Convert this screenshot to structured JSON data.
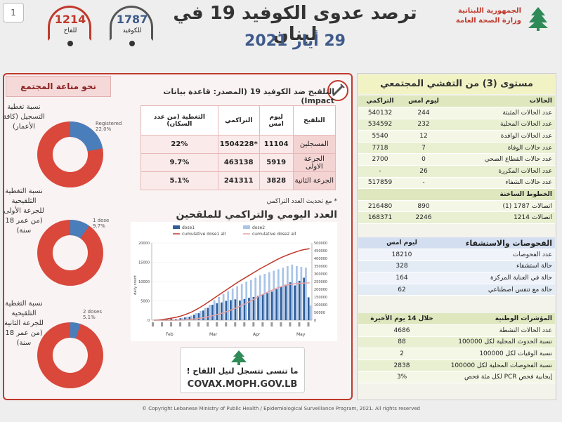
{
  "page_number": "1",
  "header": {
    "title": "ترصد عدوى الكوفيد 19 في لبنان",
    "date": "29 أيار 2021",
    "logo_line1": "الجمهورية اللبنانية",
    "logo_line2": "وزارة الصحة العامة",
    "hotlines": [
      {
        "number": "1214",
        "label": "للقاح"
      },
      {
        "number": "1787",
        "label": "للكوفيد"
      }
    ]
  },
  "left": {
    "immunity_title": "نحو مناعة المجتمع",
    "donuts": [
      {
        "label": "نسبة تغطية التسجيل (كافة الأعمار)",
        "legend": "Registered",
        "legend_pct": "22.0%",
        "fraction": 0.22
      },
      {
        "label": "نسبة التغطية التلقيحية للجرعة الأولى (من عمر 18 سنة)",
        "legend": "1 dose",
        "legend_pct": "9.7%",
        "fraction": 0.097
      },
      {
        "label": "نسبة التغطية التلقيحية للجرعة الثانية (من عمر 18 سنة)",
        "legend": "2 doses",
        "legend_pct": "5.1%",
        "fraction": 0.051
      }
    ],
    "vacc_title": "التلقيح ضد الكوفيد 19 (المصدر: قاعدة بيانات Impact)",
    "vacc_table": {
      "headers": [
        "التلقيح",
        "ليوم امس",
        "التراكمي",
        "التغطية (من عدد السكان)"
      ],
      "rows": [
        {
          "label": "المسجلين",
          "yesterday": "11104",
          "cumulative": "*1504228",
          "coverage": "22%"
        },
        {
          "label": "الجرعة الاولى",
          "yesterday": "5919",
          "cumulative": "463138",
          "coverage": "9.7%"
        },
        {
          "label": "الجرعة الثانية",
          "yesterday": "3828",
          "cumulative": "241311",
          "coverage": "5.1%"
        }
      ]
    },
    "vacc_note": "* مع تحديث العدد التراكمي",
    "chart_title": "العدد اليومي والتراكمي للملقحين",
    "covax_slogan": "ما تنسى تتسجل لنيل اللقاح !",
    "covax_url": "COVAX.MOPH.GOV.LB"
  },
  "chart_data": {
    "type": "bar",
    "legend": [
      "dose1",
      "dose2",
      "cumulative dose1 all",
      "cumulative dose2 all"
    ],
    "ylabel": "daily count",
    "y_ticks_left": [
      "0",
      "5000",
      "10000",
      "15000",
      "20000"
    ],
    "y_ticks_right": [
      "0",
      "50000",
      "100000",
      "150000",
      "200000",
      "250000",
      "300000",
      "350000",
      "400000",
      "450000",
      "500000"
    ],
    "months": [
      "Feb",
      "Mar",
      "Apr",
      "May"
    ],
    "ylim": [
      0,
      20000
    ],
    "y2lim": [
      0,
      500000
    ],
    "dose1": [
      50,
      120,
      200,
      300,
      400,
      300,
      500,
      700,
      900,
      1400,
      1800,
      2500,
      3200,
      4000,
      4400,
      4600,
      5000,
      5200,
      5400,
      5100,
      5500,
      5800,
      6000,
      6300,
      6700,
      7000,
      7400,
      8000,
      8600,
      9200,
      9800,
      9000,
      10200,
      11000,
      5919
    ],
    "dose2": [
      0,
      0,
      0,
      50,
      100,
      200,
      600,
      900,
      1200,
      1800,
      2400,
      3200,
      4000,
      5200,
      6000,
      6800,
      7500,
      8200,
      8800,
      9400,
      10000,
      10400,
      11000,
      11600,
      12000,
      12400,
      12800,
      13200,
      13600,
      14000,
      14400,
      14000,
      13800,
      13600,
      3828
    ],
    "cumulative_dose1": [
      0,
      2000,
      5000,
      9000,
      14000,
      20000,
      28000,
      38000,
      50000,
      65000,
      82000,
      100000,
      120000,
      140000,
      160000,
      180000,
      200000,
      220000,
      240000,
      258000,
      276000,
      294000,
      312000,
      330000,
      346000,
      362000,
      378000,
      394000,
      408000,
      420000,
      432000,
      442000,
      452000,
      458000,
      463138
    ],
    "cumulative_dose2": [
      0,
      0,
      0,
      0,
      0,
      500,
      1500,
      3000,
      5000,
      8000,
      12000,
      17000,
      23000,
      30000,
      38000,
      47000,
      57000,
      68000,
      80000,
      93000,
      107000,
      122000,
      138000,
      155000,
      170000,
      184000,
      197000,
      209000,
      219000,
      227000,
      233000,
      237000,
      239000,
      240500,
      241311
    ]
  },
  "right": {
    "title": "مستوى (3) من التفشي المجتمعي",
    "cases_table": {
      "header": {
        "label": "الحالات",
        "yesterday": "ليوم امس",
        "cumulative": "التراكمي"
      },
      "rows": [
        {
          "label": "عدد الحالات المثبتة",
          "yesterday": "244",
          "cumulative": "540132"
        },
        {
          "label": "عدد الحالات المحلية",
          "yesterday": "232",
          "cumulative": "534592"
        },
        {
          "label": "عدد الحالات الوافدة",
          "yesterday": "12",
          "cumulative": "5540"
        },
        {
          "label": "عدد حالات الوفاة",
          "yesterday": "7",
          "cumulative": "7718"
        },
        {
          "label": "عدد حالات القطاع الصحي",
          "yesterday": "0",
          "cumulative": "2700"
        },
        {
          "label": "عدد الحالات المكررة",
          "yesterday": "26",
          "cumulative": "-"
        },
        {
          "label": "عدد حالات الشفاء",
          "yesterday": "-",
          "cumulative": "517859"
        }
      ]
    },
    "hotline_table": {
      "header": "الخطوط الساخنة",
      "rows": [
        {
          "label": "اتصالات 1787 (1)",
          "yesterday": "890",
          "cumulative": "216480"
        },
        {
          "label": "اتصالات 1214",
          "yesterday": "2246",
          "cumulative": "168371"
        }
      ]
    },
    "tests_table": {
      "header": {
        "label": "الفحوصات والاستشفاء",
        "value": "ليوم امس"
      },
      "rows": [
        {
          "label": "عدد الفحوصات",
          "value": "18210"
        },
        {
          "label": "حالة استشفاء",
          "value": "328"
        },
        {
          "label": "حالة في العناية المركزة",
          "value": "164"
        },
        {
          "label": "حالة مع تنفس اصطناعي",
          "value": "62"
        }
      ]
    },
    "indicators_table": {
      "header": {
        "label": "المؤشرات الوطنية",
        "value": "خلال 14 يوم الأخيرة"
      },
      "rows": [
        {
          "label": "عدد الحالات النشطة",
          "value": "4686"
        },
        {
          "label": "نسبة الحدوث المحلية لكل 100000",
          "value": "88"
        },
        {
          "label": "نسبة الوفيات لكل 100000",
          "value": "2"
        },
        {
          "label": "نسبة الفحوصات المحلية لكل 100000",
          "value": "2838"
        },
        {
          "label": "إيجابية فحص PCR لكل مئة فحص",
          "value": "3%"
        }
      ]
    }
  },
  "copyright": "© Copyright Lebanese Ministry of Public Health / Epidemiological Surveillance Program, 2021. All rights reserved",
  "colors": {
    "red": "#c0392b",
    "blue": "#4a7ebb",
    "light_blue": "#a9c4e8",
    "green_panel": "#e9f0d2"
  }
}
